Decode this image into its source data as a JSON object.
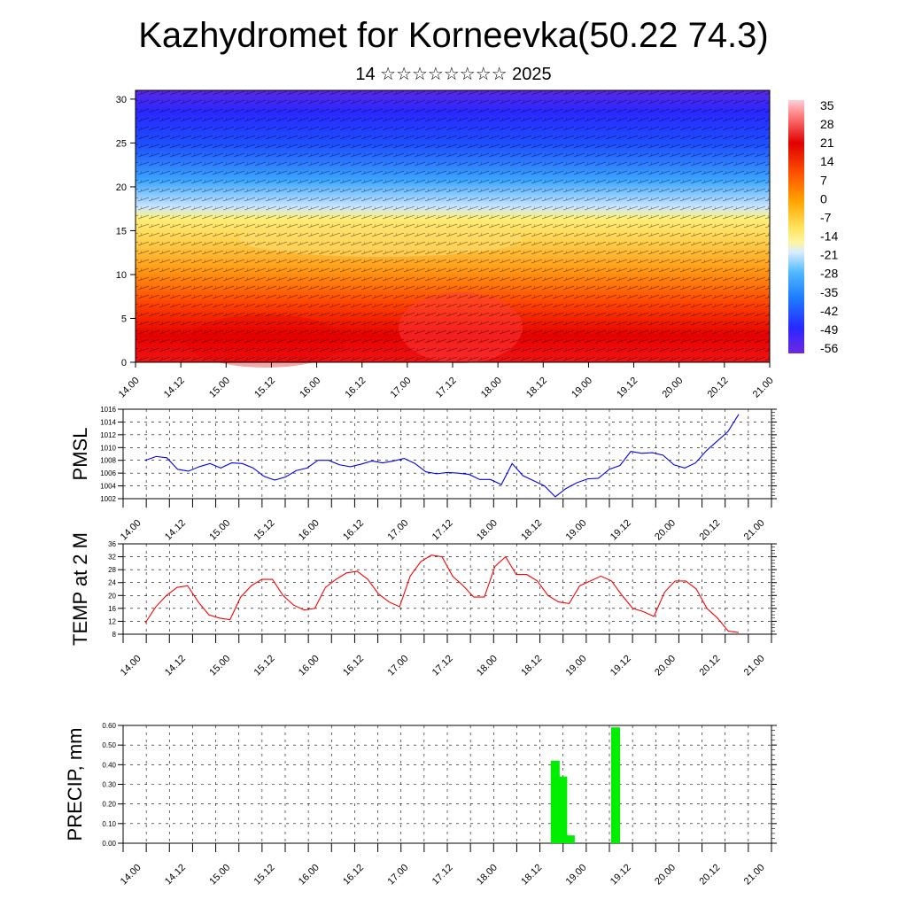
{
  "title": "Kazhydromet for Korneevka(50.22 74.3)",
  "subtitle": "14 ☆☆☆☆☆☆☆☆ 2025",
  "chart_data": [
    {
      "type": "heatmap",
      "ylim": [
        0,
        31
      ],
      "yticks": [
        "0",
        "5",
        "10",
        "15",
        "20",
        "25",
        "30"
      ],
      "xticks": [
        "14.00",
        "14.12",
        "15.00",
        "15.12",
        "16.00",
        "16.12",
        "17.00",
        "17.12",
        "18.00",
        "18.12",
        "19.00",
        "19.12",
        "20.00",
        "20.12",
        "21.00"
      ],
      "colorbar": {
        "labels": [
          "35",
          "28",
          "21",
          "14",
          "7",
          "0",
          "-7",
          "-14",
          "-21",
          "-28",
          "-35",
          "-42",
          "-49",
          "-56"
        ],
        "range": [
          -60,
          38
        ]
      },
      "wind_barbs": true
    },
    {
      "type": "line",
      "ylabel": "PMSL",
      "ylim": [
        1002,
        1016
      ],
      "yticks": [
        "1002",
        "1004",
        "1006",
        "1008",
        "1010",
        "1012",
        "1014",
        "1016"
      ],
      "xticks": [
        "14.00",
        "14.12",
        "15.00",
        "15.12",
        "16.00",
        "16.12",
        "17.00",
        "17.12",
        "18.00",
        "18.12",
        "19.00",
        "19.12",
        "20.00",
        "20.12",
        "21.00"
      ],
      "color": "#0000ff",
      "values": [
        1008,
        1008.6,
        1008.4,
        1006.6,
        1006.3,
        1007,
        1007.5,
        1006.8,
        1007.6,
        1007.5,
        1006.8,
        1005.5,
        1004.9,
        1005.4,
        1006.4,
        1006.8,
        1008,
        1008,
        1007.3,
        1007,
        1007.4,
        1007.9,
        1007.6,
        1007.9,
        1008.3,
        1007.5,
        1006.2,
        1005.9,
        1006.1,
        1006,
        1005.8,
        1005,
        1005,
        1004.2,
        1007.5,
        1005.6,
        1004.8,
        1004,
        1002.3,
        1003.6,
        1004.5,
        1005.1,
        1005.2,
        1006.6,
        1007.2,
        1009.4,
        1009.1,
        1009.2,
        1008.8,
        1007.3,
        1006.8,
        1007.6,
        1009.5,
        1011,
        1012.5,
        1015.2
      ]
    },
    {
      "type": "line",
      "ylabel": "TEMP at 2 M",
      "ylim": [
        8,
        36
      ],
      "yticks": [
        "8",
        "12",
        "16",
        "20",
        "24",
        "28",
        "32",
        "36"
      ],
      "xticks": [
        "14.00",
        "14.12",
        "15.00",
        "15.12",
        "16.00",
        "16.12",
        "17.00",
        "17.12",
        "18.00",
        "18.12",
        "19.00",
        "19.12",
        "20.00",
        "20.12",
        "21.00"
      ],
      "color": "#ff0000",
      "values": [
        11.5,
        16.5,
        20,
        22.5,
        23,
        18,
        14,
        13,
        12.5,
        19.5,
        23,
        25,
        25,
        20,
        17,
        15.5,
        16,
        22.5,
        25,
        27,
        27.5,
        25,
        20.5,
        18,
        16.5,
        26,
        30.5,
        32.5,
        32,
        26,
        23,
        19.5,
        19.5,
        29,
        32,
        26.5,
        26.5,
        24.5,
        20,
        18,
        17.5,
        23,
        24.5,
        26,
        24.5,
        20,
        16,
        15,
        13.5,
        21,
        24.5,
        24.5,
        22,
        16,
        13,
        9,
        8.5
      ]
    },
    {
      "type": "bar",
      "ylabel": "PRECIP, mm",
      "ylim": [
        0,
        0.6
      ],
      "yticks": [
        "0.00",
        "0.10",
        "0.20",
        "0.30",
        "0.40",
        "0.50",
        "0.60"
      ],
      "xticks": [
        "14.00",
        "14.12",
        "15.00",
        "15.12",
        "16.00",
        "16.12",
        "17.00",
        "17.12",
        "18.00",
        "18.12",
        "19.00",
        "19.12",
        "20.00",
        "20.12",
        "21.00"
      ],
      "color": "#00ee00",
      "bars": [
        {
          "x": 55.5,
          "value": 0.42
        },
        {
          "x": 56.5,
          "value": 0.34
        },
        {
          "x": 57.5,
          "value": 0.04
        },
        {
          "x": 63.5,
          "value": 0.59
        }
      ]
    }
  ]
}
